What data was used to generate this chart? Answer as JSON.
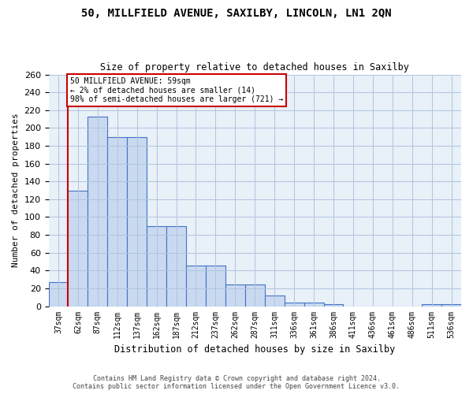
{
  "title_line1": "50, MILLFIELD AVENUE, SAXILBY, LINCOLN, LN1 2QN",
  "title_line2": "Size of property relative to detached houses in Saxilby",
  "xlabel": "Distribution of detached houses by size in Saxilby",
  "ylabel": "Number of detached properties",
  "bar_labels": [
    "37sqm",
    "62sqm",
    "87sqm",
    "112sqm",
    "137sqm",
    "162sqm",
    "187sqm",
    "212sqm",
    "237sqm",
    "262sqm",
    "287sqm",
    "311sqm",
    "336sqm",
    "361sqm",
    "386sqm",
    "411sqm",
    "436sqm",
    "461sqm",
    "486sqm",
    "511sqm",
    "536sqm"
  ],
  "bar_values": [
    27,
    130,
    213,
    190,
    190,
    90,
    90,
    46,
    46,
    24,
    24,
    12,
    4,
    4,
    2,
    0,
    0,
    0,
    0,
    2,
    2
  ],
  "bar_color": "#c9d9f0",
  "bar_edge_color": "#4472c4",
  "vline_x_index": 0.5,
  "vline_color": "#cc0000",
  "annotation_text_line1": "50 MILLFIELD AVENUE: 59sqm",
  "annotation_text_line2": "← 2% of detached houses are smaller (14)",
  "annotation_text_line3": "98% of semi-detached houses are larger (721) →",
  "annotation_box_color": "#ffffff",
  "annotation_box_edge": "#cc0000",
  "ylim": [
    0,
    260
  ],
  "yticks": [
    0,
    20,
    40,
    60,
    80,
    100,
    120,
    140,
    160,
    180,
    200,
    220,
    240,
    260
  ],
  "grid_color": "#b0c4de",
  "background_color": "#e8f0f8",
  "fig_background": "#ffffff",
  "footer_line1": "Contains HM Land Registry data © Crown copyright and database right 2024.",
  "footer_line2": "Contains public sector information licensed under the Open Government Licence v3.0."
}
